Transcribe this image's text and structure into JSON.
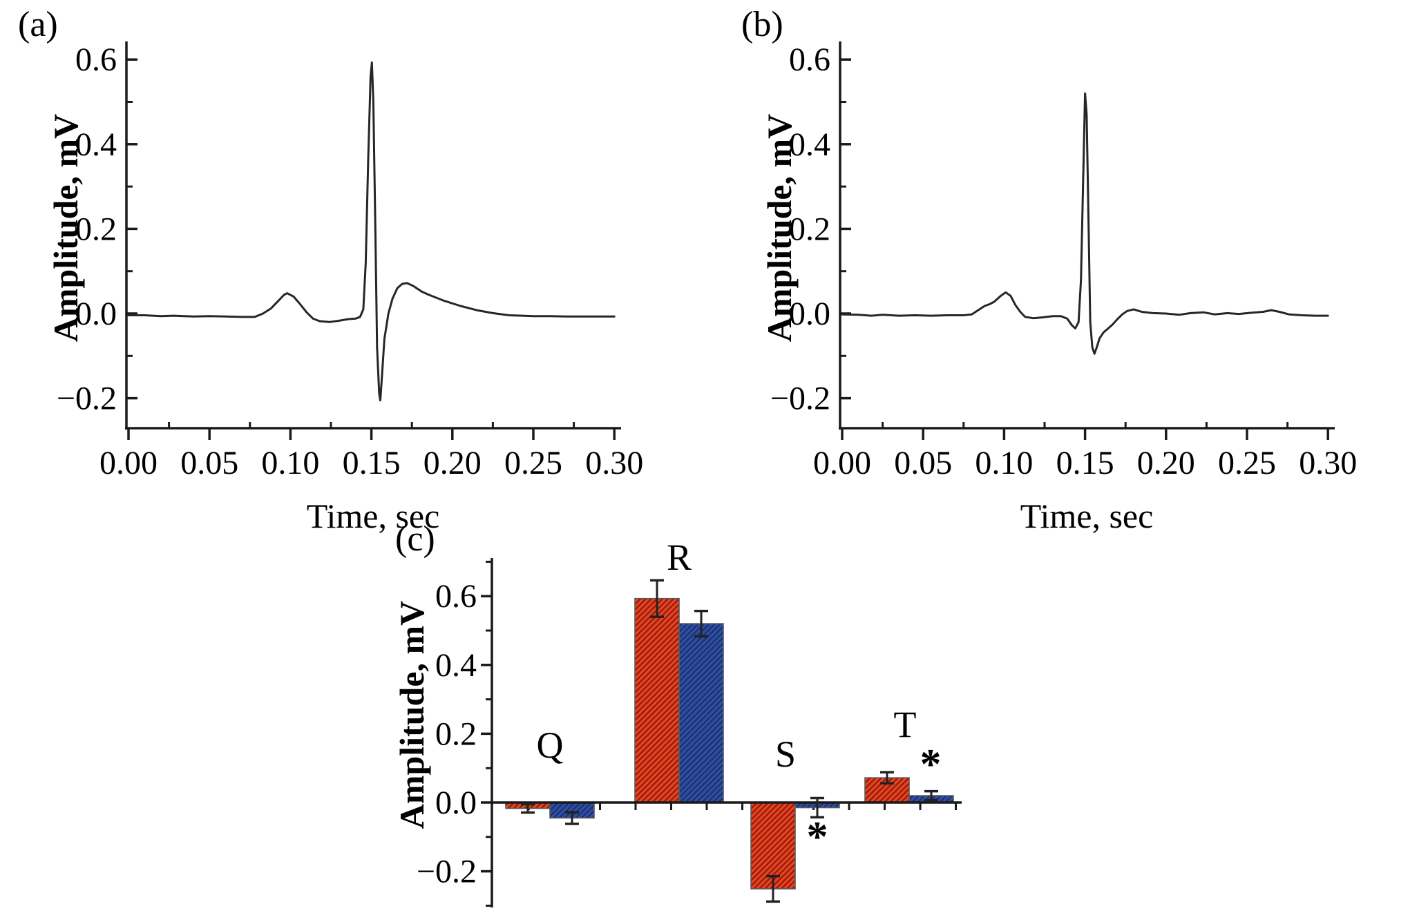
{
  "figure": {
    "background": "#ffffff",
    "panels": [
      {
        "id": "a",
        "label": "(a)"
      },
      {
        "id": "b",
        "label": "(b)"
      },
      {
        "id": "c",
        "label": "(c)"
      }
    ]
  },
  "chart_data": [
    {
      "panel": "a",
      "type": "line",
      "xlabel": "Time, sec",
      "ylabel": "Amplitude, mV",
      "xlim": [
        0.0,
        0.3
      ],
      "ylim": [
        -0.26,
        0.64
      ],
      "line_color": "#262626",
      "axis_color": "#1a1a1a",
      "xticks": {
        "major": [
          0.0,
          0.05,
          0.1,
          0.15,
          0.2,
          0.25,
          0.3
        ],
        "labels": [
          "0.00",
          "0.05",
          "0.10",
          "0.15",
          "0.20",
          "0.25",
          "0.30"
        ],
        "minor": [
          0.025,
          0.075,
          0.125,
          0.175,
          0.225,
          0.275
        ]
      },
      "yticks": {
        "major": [
          0.6,
          0.4,
          0.2,
          0.0,
          -0.2
        ],
        "labels": [
          "0.6",
          "0.4",
          "0.2",
          "0.0",
          "−0.2"
        ],
        "minor": [
          0.5,
          0.3,
          0.1,
          -0.1
        ]
      },
      "points": [
        [
          0.0,
          -0.004
        ],
        [
          0.01,
          -0.004
        ],
        [
          0.02,
          -0.006
        ],
        [
          0.028,
          -0.005
        ],
        [
          0.04,
          -0.007
        ],
        [
          0.05,
          -0.006
        ],
        [
          0.06,
          -0.007
        ],
        [
          0.07,
          -0.008
        ],
        [
          0.078,
          -0.008
        ],
        [
          0.083,
          0.0
        ],
        [
          0.088,
          0.012
        ],
        [
          0.093,
          0.032
        ],
        [
          0.096,
          0.044
        ],
        [
          0.098,
          0.048
        ],
        [
          0.102,
          0.04
        ],
        [
          0.106,
          0.022
        ],
        [
          0.11,
          0.003
        ],
        [
          0.114,
          -0.012
        ],
        [
          0.118,
          -0.018
        ],
        [
          0.124,
          -0.02
        ],
        [
          0.13,
          -0.017
        ],
        [
          0.136,
          -0.013
        ],
        [
          0.14,
          -0.012
        ],
        [
          0.143,
          -0.008
        ],
        [
          0.145,
          0.01
        ],
        [
          0.1465,
          0.12
        ],
        [
          0.148,
          0.36
        ],
        [
          0.1495,
          0.56
        ],
        [
          0.1503,
          0.593
        ],
        [
          0.1512,
          0.5
        ],
        [
          0.1525,
          0.18
        ],
        [
          0.1535,
          -0.08
        ],
        [
          0.1548,
          -0.19
        ],
        [
          0.1555,
          -0.205
        ],
        [
          0.1565,
          -0.15
        ],
        [
          0.158,
          -0.06
        ],
        [
          0.1605,
          0.0
        ],
        [
          0.163,
          0.035
        ],
        [
          0.166,
          0.06
        ],
        [
          0.169,
          0.07
        ],
        [
          0.172,
          0.072
        ],
        [
          0.176,
          0.065
        ],
        [
          0.181,
          0.052
        ],
        [
          0.185,
          0.045
        ],
        [
          0.195,
          0.03
        ],
        [
          0.205,
          0.018
        ],
        [
          0.215,
          0.008
        ],
        [
          0.225,
          0.001
        ],
        [
          0.235,
          -0.004
        ],
        [
          0.25,
          -0.006
        ],
        [
          0.26,
          -0.006
        ],
        [
          0.27,
          -0.007
        ],
        [
          0.28,
          -0.007
        ],
        [
          0.29,
          -0.007
        ],
        [
          0.3,
          -0.007
        ]
      ]
    },
    {
      "panel": "b",
      "type": "line",
      "xlabel": "Time, sec",
      "ylabel": "Amplitude, mV",
      "xlim": [
        0.0,
        0.3
      ],
      "ylim": [
        -0.26,
        0.64
      ],
      "line_color": "#262626",
      "axis_color": "#1a1a1a",
      "xticks": {
        "major": [
          0.0,
          0.05,
          0.1,
          0.15,
          0.2,
          0.25,
          0.3
        ],
        "labels": [
          "0.00",
          "0.05",
          "0.10",
          "0.15",
          "0.20",
          "0.25",
          "0.30"
        ],
        "minor": [
          0.025,
          0.075,
          0.125,
          0.175,
          0.225,
          0.275
        ]
      },
      "yticks": {
        "major": [
          0.6,
          0.4,
          0.2,
          0.0,
          -0.2
        ],
        "labels": [
          "0.6",
          "0.4",
          "0.2",
          "0.0",
          "−0.2"
        ],
        "minor": [
          0.5,
          0.3,
          0.1,
          -0.1
        ]
      },
      "points": [
        [
          0.0,
          -0.002
        ],
        [
          0.01,
          -0.003
        ],
        [
          0.018,
          -0.005
        ],
        [
          0.025,
          -0.003
        ],
        [
          0.035,
          -0.005
        ],
        [
          0.045,
          -0.004
        ],
        [
          0.055,
          -0.005
        ],
        [
          0.065,
          -0.004
        ],
        [
          0.075,
          -0.004
        ],
        [
          0.08,
          -0.002
        ],
        [
          0.084,
          0.008
        ],
        [
          0.088,
          0.018
        ],
        [
          0.091,
          0.022
        ],
        [
          0.094,
          0.028
        ],
        [
          0.098,
          0.042
        ],
        [
          0.101,
          0.05
        ],
        [
          0.104,
          0.042
        ],
        [
          0.107,
          0.02
        ],
        [
          0.11,
          0.004
        ],
        [
          0.113,
          -0.008
        ],
        [
          0.118,
          -0.011
        ],
        [
          0.124,
          -0.009
        ],
        [
          0.13,
          -0.006
        ],
        [
          0.135,
          -0.006
        ],
        [
          0.139,
          -0.012
        ],
        [
          0.142,
          -0.028
        ],
        [
          0.144,
          -0.035
        ],
        [
          0.146,
          -0.02
        ],
        [
          0.1475,
          0.08
        ],
        [
          0.149,
          0.35
        ],
        [
          0.15,
          0.52
        ],
        [
          0.151,
          0.47
        ],
        [
          0.1522,
          0.2
        ],
        [
          0.1532,
          -0.02
        ],
        [
          0.1545,
          -0.08
        ],
        [
          0.1558,
          -0.095
        ],
        [
          0.1572,
          -0.08
        ],
        [
          0.159,
          -0.058
        ],
        [
          0.1615,
          -0.044
        ],
        [
          0.164,
          -0.036
        ],
        [
          0.167,
          -0.026
        ],
        [
          0.17,
          -0.013
        ],
        [
          0.173,
          -0.002
        ],
        [
          0.176,
          0.006
        ],
        [
          0.18,
          0.01
        ],
        [
          0.185,
          0.004
        ],
        [
          0.192,
          0.001
        ],
        [
          0.2,
          0.0
        ],
        [
          0.208,
          -0.003
        ],
        [
          0.215,
          0.001
        ],
        [
          0.223,
          0.003
        ],
        [
          0.23,
          -0.002
        ],
        [
          0.238,
          0.001
        ],
        [
          0.245,
          -0.001
        ],
        [
          0.253,
          0.002
        ],
        [
          0.26,
          0.004
        ],
        [
          0.265,
          0.008
        ],
        [
          0.27,
          0.004
        ],
        [
          0.276,
          -0.002
        ],
        [
          0.284,
          -0.004
        ],
        [
          0.292,
          -0.005
        ],
        [
          0.3,
          -0.005
        ]
      ]
    },
    {
      "panel": "c",
      "type": "bar",
      "ylabel": "Amplitude, mV",
      "ylim": [
        -0.3,
        0.71
      ],
      "grid": false,
      "legend": "none",
      "axis_color": "#1a1a1a",
      "yticks": {
        "major": [
          0.6,
          0.4,
          0.2,
          0.0,
          -0.2
        ],
        "labels": [
          "0.6",
          "0.4",
          "0.2",
          "0.0",
          "−0.2"
        ],
        "minor": [
          0.7,
          0.5,
          0.3,
          0.1,
          -0.1,
          -0.3
        ]
      },
      "categories": [
        "Q",
        "R",
        "S",
        "T"
      ],
      "series": [
        {
          "name": "series-red",
          "fill": "#e8431f",
          "hatch_color": "#8c1b0e",
          "values": [
            -0.017,
            0.593,
            -0.251,
            0.072
          ],
          "errors": [
            0.012,
            0.053,
            0.037,
            0.016
          ]
        },
        {
          "name": "series-blue",
          "fill": "#2d4fa5",
          "hatch_color": "#1d2e6b",
          "values": [
            -0.045,
            0.52,
            -0.015,
            0.02
          ],
          "errors": [
            0.017,
            0.037,
            0.028,
            0.013
          ]
        }
      ],
      "significance": [
        {
          "category": "S",
          "series": "series-blue",
          "symbol": "*",
          "placement": "below"
        },
        {
          "category": "T",
          "series": "series-blue",
          "symbol": "*",
          "placement": "above"
        }
      ]
    }
  ]
}
